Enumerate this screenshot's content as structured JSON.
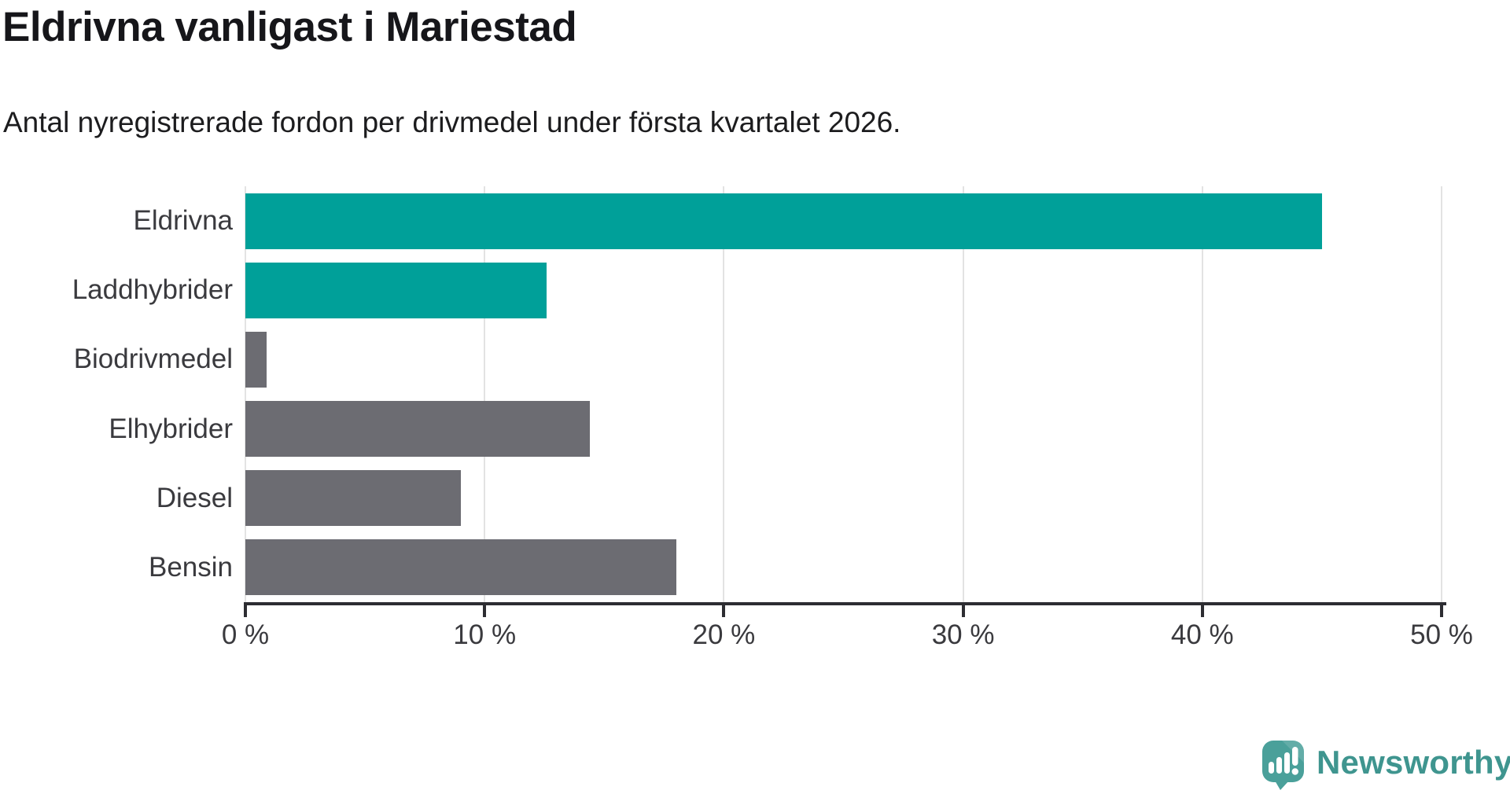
{
  "header": {
    "title": "Eldrivna vanligast i Mariestad",
    "subtitle": "Antal nyregistrerade fordon per drivmedel under första kvartalet 2026."
  },
  "chart_data": {
    "type": "bar",
    "orientation": "horizontal",
    "title": "Eldrivna vanligast i Mariestad",
    "subtitle": "Antal nyregistrerade fordon per drivmedel under första kvartalet 2026.",
    "categories": [
      "Eldrivna",
      "Laddhybrider",
      "Biodrivmedel",
      "Elhybrider",
      "Diesel",
      "Bensin"
    ],
    "values": [
      45.0,
      12.6,
      0.9,
      14.4,
      9.0,
      18.0
    ],
    "unit": "%",
    "xlim": [
      0,
      50
    ],
    "x_ticks": [
      "0 %",
      "10 %",
      "20 %",
      "30 %",
      "40 %",
      "50 %"
    ],
    "x_tick_values": [
      0,
      10,
      20,
      30,
      40,
      50
    ],
    "bar_colors": [
      "#00a099",
      "#00a099",
      "#6c6c72",
      "#6c6c72",
      "#6c6c72",
      "#6c6c72"
    ],
    "grid": "vertical-only",
    "legend": "none"
  },
  "branding": {
    "wordmark": "Newsworthy",
    "icon": "newsworthy-speech-bubble-barchart-icon"
  },
  "colors": {
    "accent_teal": "#00a099",
    "neutral_gray": "#6c6c72",
    "ink": "#16161a",
    "ink_soft": "#1c1c1e",
    "label": "#3a3a3e",
    "grid": "#e3e3e3",
    "axis": "#2d2d32",
    "logo": "#3f958f",
    "logo_icon": "#4aa09a",
    "background": "#ffffff"
  }
}
